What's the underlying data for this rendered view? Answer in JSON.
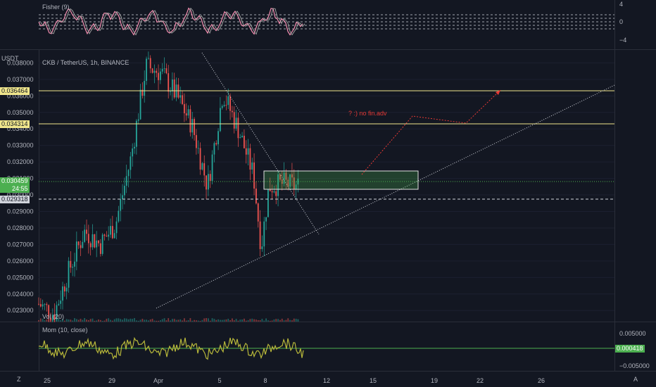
{
  "fisher": {
    "title": "Fisher (9)",
    "axis_ticks": [
      "4",
      "0",
      "−4"
    ]
  },
  "main": {
    "unit": "USDT",
    "symbol_title": "CKB / TetherUS, 1h, BINANCE",
    "annotation": "? :) no fin.adv",
    "price_ticks": [
      "0.038000",
      "0.037000",
      "0.036000",
      "0.035000",
      "0.034000",
      "0.033000",
      "0.032000",
      "0.031000",
      "0.030000",
      "0.029000",
      "0.028000",
      "0.027000",
      "0.026000",
      "0.025000",
      "0.024000",
      "0.023000"
    ],
    "tags": {
      "resistance_1": "0.036464",
      "resistance_2": "0.034314",
      "current_price": "0.030459",
      "countdown": "24:55",
      "support": "0.029318"
    },
    "colors": {
      "resistance": "#f0e68c",
      "current": "#4caf50",
      "support": "#d1d4dc",
      "up": "#26a69a",
      "down": "#ef5350"
    }
  },
  "volume": {
    "title": "Vol (20)"
  },
  "momentum": {
    "title": "Mom (10, close)",
    "axis_ticks": [
      "0.005000",
      "0.000418",
      "−0.005000"
    ]
  },
  "xaxis": {
    "ticks": [
      "25",
      "29",
      "Apr",
      "5",
      "8",
      "12",
      "15",
      "19",
      "22",
      "26"
    ],
    "corner_left": "Z",
    "corner_right": "A"
  },
  "chart_data": {
    "type": "candlestick",
    "title": "CKB / TetherUS, 1h, BINANCE",
    "x_range": [
      "Mar 24",
      "Apr 28"
    ],
    "y_range": [
      0.0222,
      0.0387
    ],
    "key_path": [
      {
        "x": "Mar 24",
        "price": 0.0234
      },
      {
        "x": "Mar 25",
        "price": 0.0228
      },
      {
        "x": "Mar 26",
        "price": 0.0255
      },
      {
        "x": "Mar 27",
        "price": 0.0278
      },
      {
        "x": "Mar 28",
        "price": 0.027
      },
      {
        "x": "Mar 29",
        "price": 0.0282
      },
      {
        "x": "Mar 30",
        "price": 0.0322
      },
      {
        "x": "Mar 31",
        "price": 0.0378
      },
      {
        "x": "Apr 1",
        "price": 0.0374
      },
      {
        "x": "Apr 2",
        "price": 0.036
      },
      {
        "x": "Apr 3",
        "price": 0.0342
      },
      {
        "x": "Apr 4",
        "price": 0.0305
      },
      {
        "x": "Apr 5",
        "price": 0.0362
      },
      {
        "x": "Apr 6",
        "price": 0.034
      },
      {
        "x": "Apr 7",
        "price": 0.0312
      },
      {
        "x": "Apr 7.5",
        "price": 0.0268
      },
      {
        "x": "Apr 8",
        "price": 0.0305
      },
      {
        "x": "Apr 9",
        "price": 0.0307
      },
      {
        "x": "Apr 10",
        "price": 0.0305
      }
    ],
    "levels": {
      "resistance_1": 0.036464,
      "resistance_2": 0.034314,
      "current": 0.030459,
      "support": 0.029318
    }
  }
}
